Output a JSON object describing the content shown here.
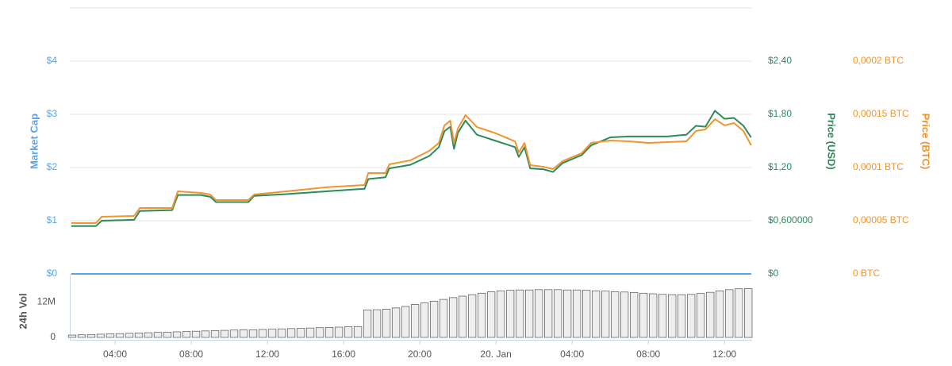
{
  "chart_data": [
    {
      "type": "line",
      "x": [
        1.7,
        3.0,
        3.3,
        5.0,
        5.3,
        7.0,
        7.3,
        8.5,
        9.0,
        9.3,
        11.0,
        11.3,
        13.0,
        15.0,
        17.1,
        17.3,
        18.2,
        18.4,
        19.5,
        20.0,
        20.5,
        21.0,
        21.3,
        21.6,
        21.8,
        22.0,
        22.4,
        23.0,
        24.0,
        25.0,
        25.2,
        25.5,
        25.8,
        26.5,
        27.0,
        27.5,
        28.5,
        29.0,
        30.0,
        31.0,
        32.0,
        33.0,
        34.0,
        34.5,
        35.0,
        35.5,
        36.0,
        36.5,
        37.0,
        37.4
      ],
      "xlim": [
        1.625,
        37.45
      ],
      "xticks": [
        {
          "value": 4,
          "label": "04:00"
        },
        {
          "value": 8,
          "label": "08:00"
        },
        {
          "value": 12,
          "label": "12:00"
        },
        {
          "value": 16,
          "label": "16:00"
        },
        {
          "value": 20,
          "label": "20:00"
        },
        {
          "value": 24,
          "label": "20. Jan"
        },
        {
          "value": 28,
          "label": "04:00"
        },
        {
          "value": 32,
          "label": "08:00"
        },
        {
          "value": 36,
          "label": "12:00"
        }
      ],
      "ylim": [
        0,
        5
      ],
      "yticks": [
        {
          "value": 0,
          "label": "$0"
        },
        {
          "value": 1,
          "label": "$1"
        },
        {
          "value": 2,
          "label": "$2"
        },
        {
          "value": 3,
          "label": "$3"
        },
        {
          "value": 4,
          "label": "$4"
        }
      ],
      "y2lim": [
        0,
        3
      ],
      "y2ticks": [
        {
          "value": 0,
          "label": "$0"
        },
        {
          "value": 0.6,
          "label": "$0,600000"
        },
        {
          "value": 1.2,
          "label": "$1,20"
        },
        {
          "value": 1.8,
          "label": "$1,80"
        },
        {
          "value": 2.4,
          "label": "$2,40"
        }
      ],
      "y3lim": [
        0,
        0.00025
      ],
      "y3ticks": [
        {
          "value": 0,
          "label": "0 BTC"
        },
        {
          "value": 5e-05,
          "label": "0,00005 BTC"
        },
        {
          "value": 0.0001,
          "label": "0,0001 BTC"
        },
        {
          "value": 0.00015,
          "label": "0,00015 BTC"
        },
        {
          "value": 0.0002,
          "label": "0,0002 BTC"
        }
      ],
      "grid": true,
      "series": [
        {
          "name": "Market Cap",
          "color": "#5ba4e3",
          "axis": "y",
          "values": [
            0,
            0,
            0,
            0,
            0,
            0,
            0,
            0,
            0,
            0,
            0,
            0,
            0,
            0,
            0,
            0,
            0,
            0,
            0,
            0,
            0,
            0,
            0,
            0,
            0,
            0,
            0,
            0,
            0,
            0,
            0,
            0,
            0,
            0,
            0,
            0,
            0,
            0,
            0,
            0,
            0,
            0,
            0,
            0,
            0,
            0,
            0,
            0,
            0,
            0
          ]
        },
        {
          "name": "Price (USD)",
          "color": "#2f8a5b",
          "axis": "y2",
          "values": [
            0.54,
            0.54,
            0.6,
            0.61,
            0.71,
            0.72,
            0.89,
            0.89,
            0.87,
            0.81,
            0.81,
            0.88,
            0.9,
            0.93,
            0.96,
            1.07,
            1.09,
            1.19,
            1.23,
            1.28,
            1.33,
            1.43,
            1.61,
            1.66,
            1.41,
            1.59,
            1.73,
            1.57,
            1.5,
            1.43,
            1.32,
            1.43,
            1.19,
            1.18,
            1.15,
            1.25,
            1.34,
            1.45,
            1.54,
            1.55,
            1.55,
            1.55,
            1.57,
            1.67,
            1.66,
            1.84,
            1.75,
            1.76,
            1.67,
            1.54
          ]
        },
        {
          "name": "Price (BTC)",
          "color": "#f0942c",
          "axis": "y3",
          "values": [
            4.78e-05,
            4.78e-05,
            5.37e-05,
            5.45e-05,
            6.19e-05,
            6.19e-05,
            7.76e-05,
            7.61e-05,
            7.46e-05,
            6.94e-05,
            6.94e-05,
            7.46e-05,
            7.76e-05,
            8.13e-05,
            8.36e-05,
            9.48e-05,
            9.48e-05,
            0.000103,
            0.0001067,
            0.0001112,
            0.0001157,
            0.0001231,
            0.0001396,
            0.000144,
            0.0001231,
            0.0001366,
            0.0001493,
            0.0001381,
            0.0001321,
            0.0001246,
            0.0001142,
            0.0001231,
            0.0001022,
            0.0001007,
            9.85e-05,
            0.000106,
            0.0001134,
            0.0001231,
            0.0001254,
            0.0001246,
            0.0001231,
            0.0001239,
            0.0001246,
            0.0001343,
            0.0001358,
            0.0001455,
            0.0001396,
            0.0001418,
            0.0001343,
            0.0001209
          ]
        }
      ]
    },
    {
      "type": "bar",
      "ylabel": "24h Vol",
      "x": [
        1.75,
        2.25,
        2.75,
        3.25,
        3.75,
        4.25,
        4.75,
        5.25,
        5.75,
        6.25,
        6.75,
        7.25,
        7.75,
        8.25,
        8.75,
        9.25,
        9.75,
        10.25,
        10.75,
        11.25,
        11.75,
        12.25,
        12.75,
        13.25,
        13.75,
        14.25,
        14.75,
        15.25,
        15.75,
        16.25,
        16.75,
        17.25,
        17.75,
        18.25,
        18.75,
        19.25,
        19.75,
        20.25,
        20.75,
        21.25,
        21.75,
        22.25,
        22.75,
        23.25,
        23.75,
        24.25,
        24.75,
        25.25,
        25.75,
        26.25,
        26.75,
        27.25,
        27.75,
        28.25,
        28.75,
        29.25,
        29.75,
        30.25,
        30.75,
        31.25,
        31.75,
        32.25,
        32.75,
        33.25,
        33.75,
        34.25,
        34.75,
        35.25,
        35.75,
        36.25,
        36.75,
        37.25
      ],
      "xlim": [
        1.625,
        37.45
      ],
      "values": [
        800000,
        900000,
        1000000,
        1100000,
        1200000,
        1300000,
        1400000,
        1500000,
        1600000,
        1700000,
        1800000,
        1900000,
        2000000,
        2100000,
        2200000,
        2300000,
        2400000,
        2500000,
        2600000,
        2600000,
        2700000,
        2800000,
        2900000,
        3000000,
        3100000,
        3200000,
        3300000,
        3400000,
        3500000,
        3600000,
        3700000,
        9300000,
        9400000,
        9600000,
        10000000,
        10500000,
        11200000,
        11700000,
        12300000,
        12900000,
        13500000,
        14000000,
        14500000,
        15000000,
        15500000,
        15800000,
        16000000,
        16100000,
        16100000,
        16200000,
        16200000,
        16200000,
        16100000,
        16100000,
        16000000,
        15800000,
        15700000,
        15500000,
        15400000,
        15200000,
        15000000,
        14800000,
        14600000,
        14500000,
        14500000,
        14600000,
        14900000,
        15300000,
        15800000,
        16200000,
        16500000,
        16600000
      ],
      "color": "#eeeeee",
      "ylim": [
        0,
        21000000
      ],
      "yticks": [
        0,
        {
          "value": 12000000,
          "label": "12M"
        }
      ]
    }
  ]
}
